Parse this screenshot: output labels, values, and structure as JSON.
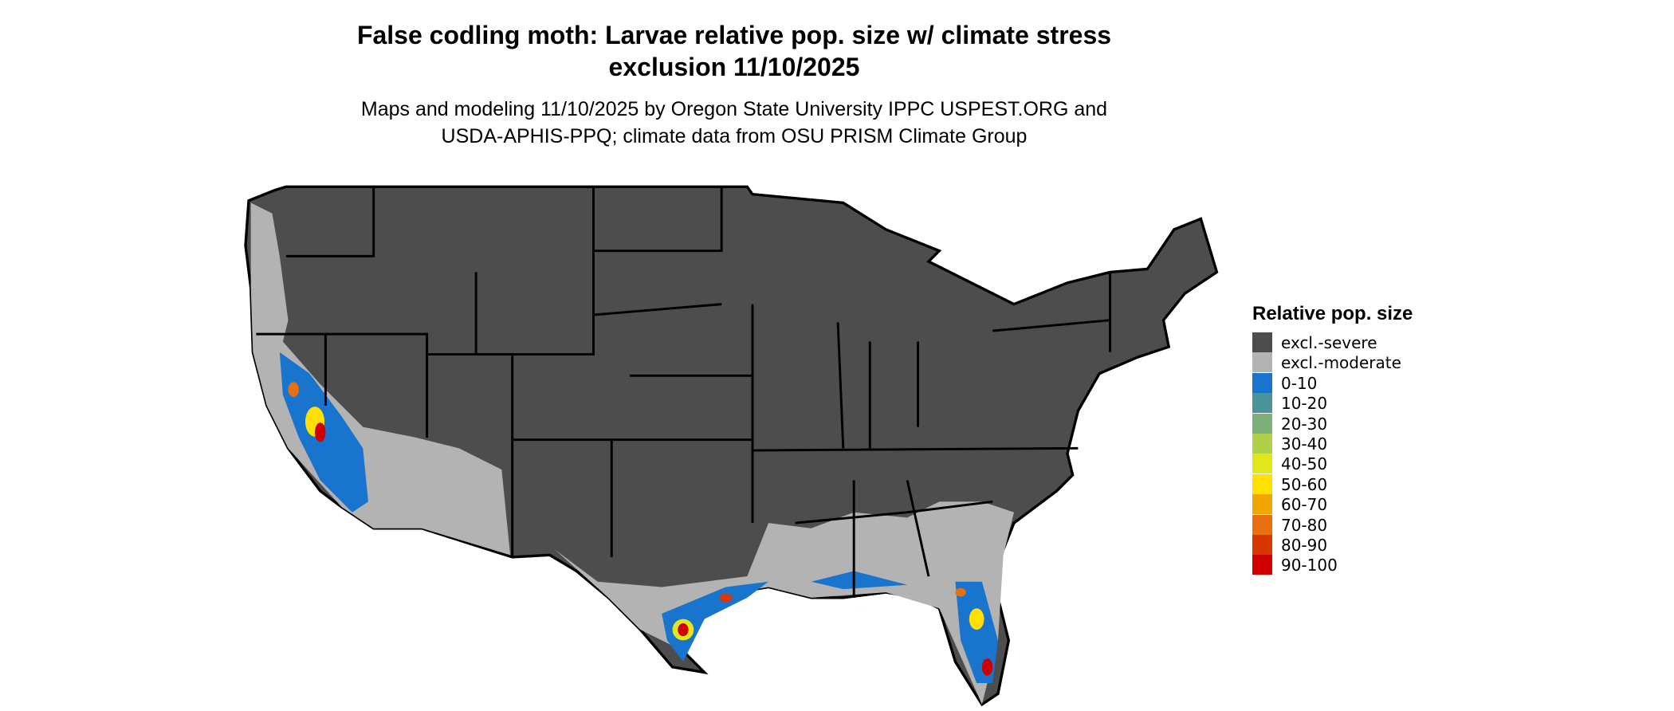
{
  "header": {
    "title": [
      "False codling moth: Larvae relative pop. size w/ climate stress",
      "exclusion 11/10/2025"
    ],
    "subtitle": [
      "Maps and modeling 11/10/2025 by Oregon State University IPPC USPEST.ORG and",
      "USDA-APHIS-PPQ; climate data from OSU PRISM Climate Group"
    ]
  },
  "legend": {
    "title": "Relative pop. size",
    "items": [
      {
        "label": "excl.-severe",
        "color": "#4d4d4d"
      },
      {
        "label": "excl.-moderate",
        "color": "#b3b3b3"
      },
      {
        "label": "0-10",
        "color": "#1874cd"
      },
      {
        "label": "10-20",
        "color": "#4a9499"
      },
      {
        "label": "20-30",
        "color": "#7eb07a"
      },
      {
        "label": "30-40",
        "color": "#b2cf4b"
      },
      {
        "label": "40-50",
        "color": "#e0e81a"
      },
      {
        "label": "50-60",
        "color": "#ffe000"
      },
      {
        "label": "60-70",
        "color": "#f0a800"
      },
      {
        "label": "70-80",
        "color": "#e87010"
      },
      {
        "label": "80-90",
        "color": "#d83800"
      },
      {
        "label": "90-100",
        "color": "#d00000"
      }
    ]
  }
}
